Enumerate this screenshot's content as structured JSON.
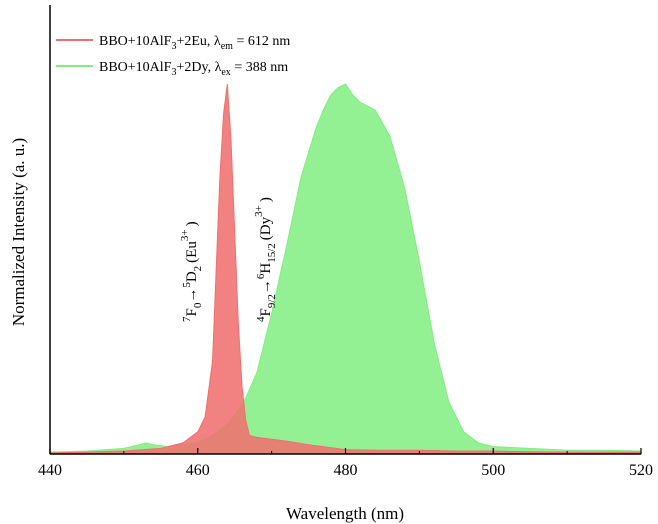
{
  "chart_data": {
    "type": "area",
    "xlabel": "Wavelength (nm)",
    "ylabel": "Normalized Intensity (a. u.)",
    "xlim": [
      440,
      520
    ],
    "ylim": [
      0,
      1.0
    ],
    "xticks": [
      440,
      460,
      480,
      500,
      520
    ],
    "tick_labels": [
      "440",
      "460",
      "480",
      "500",
      "520"
    ],
    "grid": false,
    "legend_position": "top-left",
    "series": [
      {
        "name": "BBO+10AlF3+2Eu, λem = 612 nm",
        "legend": {
          "main": "BBO+10AlF",
          "sub1": "3",
          "mid": "+2Eu, λ",
          "sub2": "em",
          "tail": " = 612 nm"
        },
        "color": "#f07070",
        "x": [
          440,
          445,
          450,
          455,
          458,
          460,
          461,
          462,
          462.5,
          463,
          463.5,
          464,
          464.5,
          465,
          465.5,
          466,
          466.5,
          467,
          468,
          470,
          472,
          475,
          480,
          485,
          490,
          495,
          500,
          505,
          510,
          515,
          520
        ],
        "y": [
          0.003,
          0.005,
          0.008,
          0.015,
          0.03,
          0.06,
          0.1,
          0.25,
          0.5,
          0.75,
          0.92,
          1.0,
          0.85,
          0.6,
          0.35,
          0.18,
          0.09,
          0.05,
          0.045,
          0.04,
          0.035,
          0.025,
          0.012,
          0.01,
          0.01,
          0.008,
          0.008,
          0.006,
          0.005,
          0.005,
          0.005
        ]
      },
      {
        "name": "BBO+10AlF3+2Dy, λex = 388 nm",
        "legend": {
          "main": "BBO+10AlF",
          "sub1": "3",
          "mid": "+2Dy, λ",
          "sub2": "ex",
          "tail": " = 388 nm"
        },
        "color": "#80ee80",
        "x": [
          440,
          445,
          450,
          452,
          453,
          454,
          456,
          458,
          460,
          462,
          464,
          466,
          468,
          470,
          472,
          474,
          476,
          477,
          478,
          479,
          480,
          481,
          482,
          484,
          486,
          488,
          490,
          492,
          494,
          496,
          498,
          500,
          505,
          510,
          515,
          520
        ],
        "y": [
          0.005,
          0.008,
          0.015,
          0.025,
          0.03,
          0.025,
          0.02,
          0.025,
          0.03,
          0.05,
          0.08,
          0.13,
          0.22,
          0.38,
          0.56,
          0.75,
          0.88,
          0.93,
          0.97,
          0.99,
          1.0,
          0.97,
          0.95,
          0.93,
          0.86,
          0.72,
          0.52,
          0.3,
          0.14,
          0.06,
          0.03,
          0.02,
          0.015,
          0.01,
          0.01,
          0.008
        ]
      }
    ],
    "annotations": [
      {
        "id": "eu",
        "main1": "F",
        "sup1": "7",
        "sub1": "0",
        "arrow": "→",
        "main2": "D",
        "sup2": "5",
        "sub2": "2",
        "ion": "(Eu",
        "charge": "3+",
        "close": ")"
      },
      {
        "id": "dy",
        "main1": "F",
        "sup1": "4",
        "sub1": "9/2",
        "arrow": "→",
        "main2": "H",
        "sup2": "6",
        "sub2": "15/2",
        "ion": "(Dy",
        "charge": "3+",
        "close": ")"
      }
    ]
  }
}
